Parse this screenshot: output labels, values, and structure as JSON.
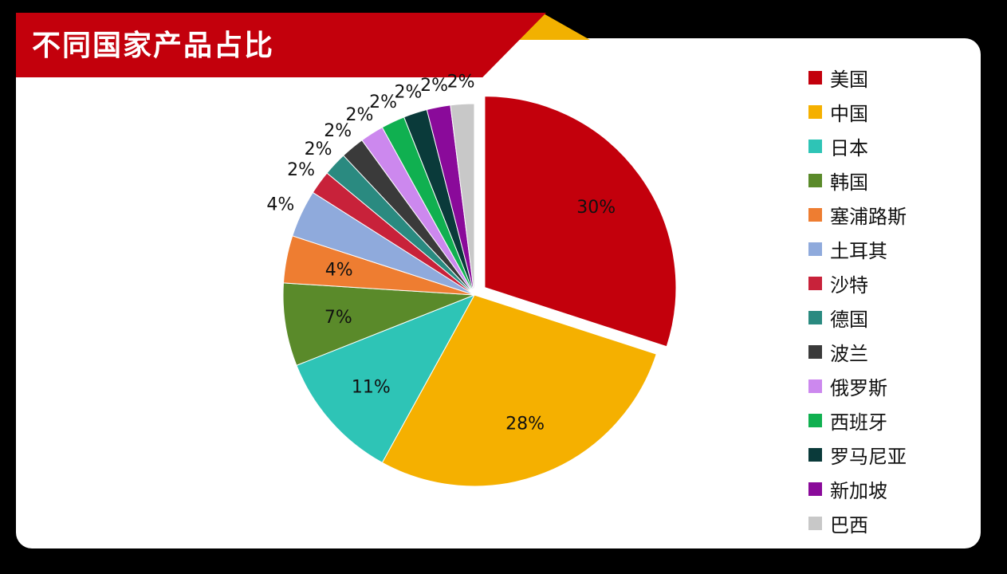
{
  "header": {
    "title": "不同国家产品占比"
  },
  "chart_data": {
    "type": "pie",
    "title": "不同国家产品占比",
    "start_angle": "12 o'clock, clockwise",
    "exploded": [
      "美国"
    ],
    "legend_position": "right",
    "categories": [
      "美国",
      "中国",
      "日本",
      "韩国",
      "塞浦路斯",
      "土耳其",
      "沙特",
      "德国",
      "波兰",
      "俄罗斯",
      "西班牙",
      "罗马尼亚",
      "新加坡",
      "巴西"
    ],
    "values": [
      30,
      28,
      11,
      7,
      4,
      4,
      2,
      2,
      2,
      2,
      2,
      2,
      2,
      2
    ],
    "labels": [
      "30%",
      "28%",
      "11%",
      "7%",
      "4%",
      "4%",
      "2%",
      "2%",
      "2%",
      "2%",
      "2%",
      "2%",
      "2%",
      "2%"
    ],
    "colors": [
      "#c3000c",
      "#f5b000",
      "#2ec4b6",
      "#5a8a2a",
      "#ee7d31",
      "#8faadc",
      "#c8223a",
      "#2a8a80",
      "#3a3a3a",
      "#cc88ee",
      "#10b050",
      "#0a3a3a",
      "#8a0a9a",
      "#c8c8c8"
    ]
  }
}
